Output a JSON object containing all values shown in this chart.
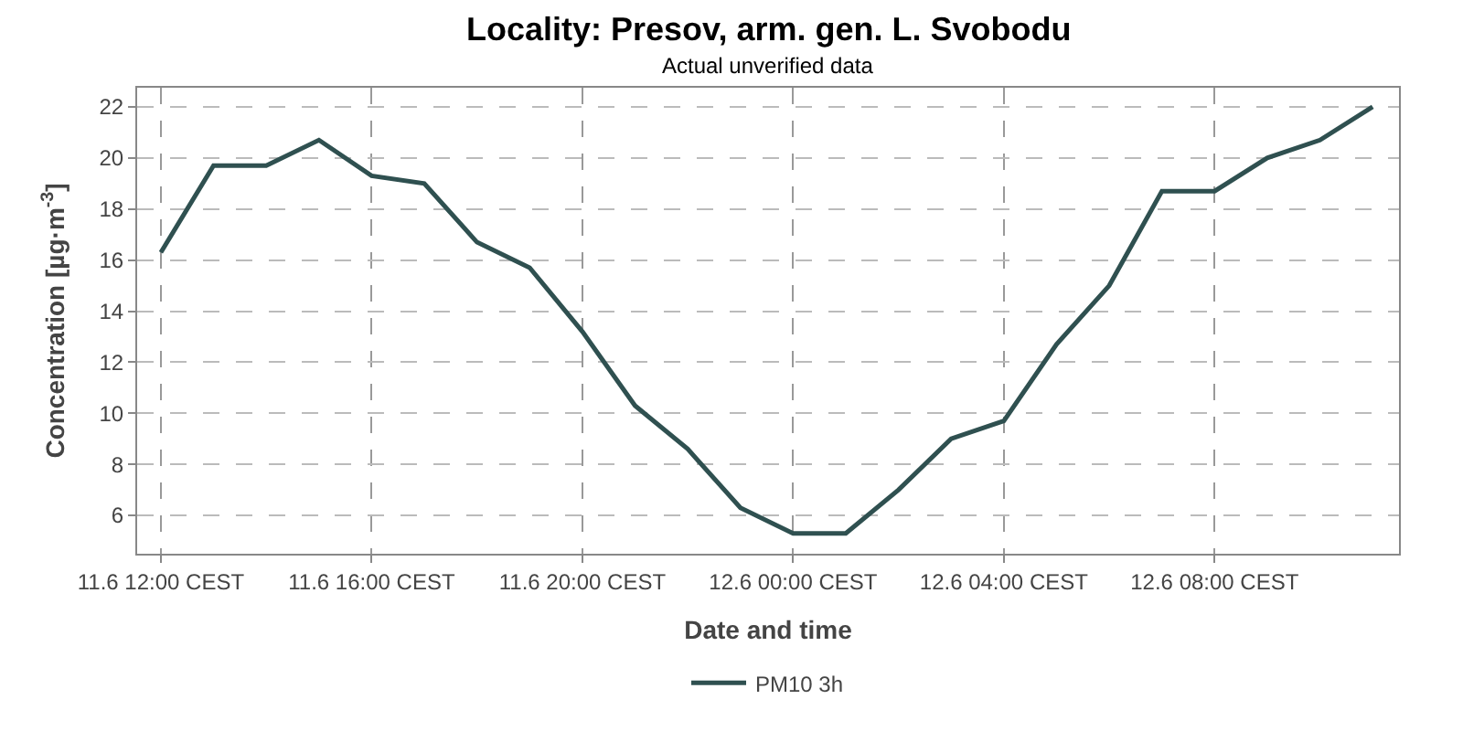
{
  "chart_data": {
    "type": "line",
    "title": "Locality: Presov, arm. gen. L. Svobodu",
    "subtitle": "Actual unverified data",
    "xlabel": "Date and time",
    "ylabel": "Concentration [µg·m$^{-3}$]",
    "categories": [
      "11.6 12:00 CEST",
      null,
      null,
      null,
      "11.6 16:00 CEST",
      null,
      null,
      null,
      "11.6 20:00 CEST",
      null,
      null,
      null,
      "12.6 00:00 CEST",
      null,
      null,
      null,
      "12.6 04:00 CEST",
      null,
      null,
      null,
      "12.6 08:00 CEST",
      null,
      null,
      null
    ],
    "series": [
      {
        "name": "PM10 3h",
        "color": "#2f5050",
        "values": [
          16.3,
          19.7,
          19.7,
          20.7,
          19.3,
          19.0,
          16.7,
          15.7,
          13.2,
          10.3,
          8.6,
          6.3,
          5.3,
          5.3,
          7.0,
          9.0,
          9.7,
          12.7,
          15.0,
          18.7,
          18.7,
          20.0,
          20.7,
          22.0
        ]
      }
    ],
    "ylim": [
      4.5,
      22.75
    ],
    "yticks": [
      6,
      8,
      10,
      12,
      14,
      16,
      18,
      20,
      22
    ],
    "grid": true,
    "legend": "bottom",
    "marker": "none",
    "line_style": "solid"
  }
}
